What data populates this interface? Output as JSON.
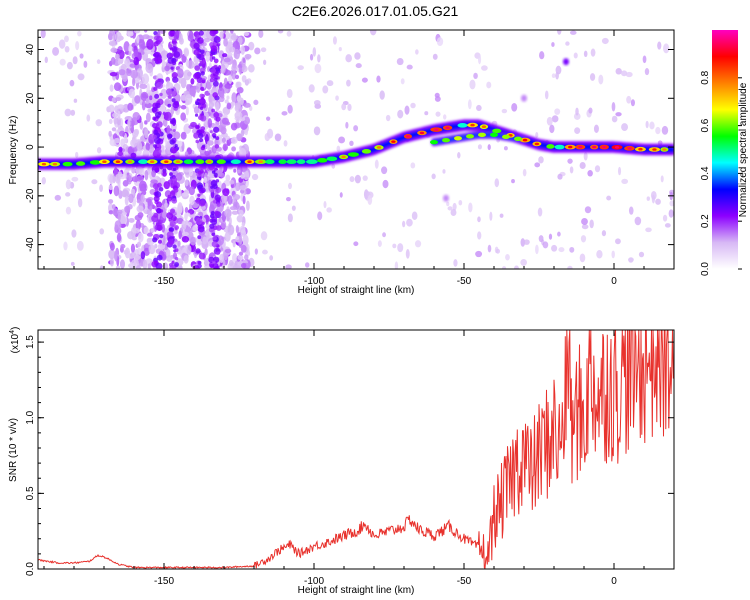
{
  "figure_title": "C2E6.2026.017.01.05.G21",
  "chart_data": [
    {
      "type": "heatmap",
      "xlabel": "Height of straight line (km)",
      "ylabel": "Frequency (Hz)",
      "xlim": [
        -192,
        20
      ],
      "ylim": [
        -50,
        48
      ],
      "x_ticks": [
        -150,
        -100,
        -50,
        0
      ],
      "x_tick_labels": [
        "-150",
        "-100",
        "-50",
        "0"
      ],
      "y_ticks": [
        -40,
        -20,
        0,
        20,
        40
      ],
      "y_tick_labels": [
        "-40",
        "-20",
        "0",
        "20",
        "40"
      ],
      "colorbar": {
        "label": "Normalized spectral amplitude",
        "range": [
          0,
          1
        ],
        "ticks": [
          0,
          0.2,
          0.4,
          0.6,
          0.8
        ],
        "tick_labels": [
          "0.0",
          "0.2",
          "0.4",
          "0.6",
          "0.8"
        ],
        "colors": [
          "#ffffff",
          "#d7b8f5",
          "#8c00ff",
          "#0000ff",
          "#00ffff",
          "#00ff00",
          "#ffff00",
          "#ff8000",
          "#ff0000",
          "#ff00c0"
        ]
      },
      "ridge": {
        "x": [
          -192,
          -180,
          -170,
          -160,
          -150,
          -140,
          -130,
          -120,
          -110,
          -100,
          -90,
          -80,
          -70,
          -60,
          -50,
          -45,
          -40,
          -35,
          -30,
          -25,
          -20,
          -10,
          0,
          10,
          20
        ],
        "y": [
          -7,
          -7,
          -6,
          -6,
          -6,
          -6,
          -6,
          -6,
          -6,
          -6,
          -4,
          -1,
          4,
          7,
          9,
          9,
          7,
          5,
          3,
          1,
          0,
          0,
          0,
          -1,
          -1
        ]
      },
      "secondary_ridge": {
        "x": [
          -60,
          -55,
          -50,
          -45,
          -40,
          -35,
          -30
        ],
        "y": [
          2,
          3,
          4,
          5,
          5,
          4,
          3
        ]
      },
      "scatter_band_x": [
        -168,
        -122
      ],
      "isolated_features": [
        {
          "x": -16,
          "y": 35
        },
        {
          "x": -30,
          "y": 20
        },
        {
          "x": -56,
          "y": -21
        }
      ]
    },
    {
      "type": "line",
      "xlabel": "Height of straight line (km)",
      "ylabel": "SNR (10 * v/v)",
      "y_scale_label": "(x10",
      "y_scale_exponent": "4",
      "xlim": [
        -192,
        20
      ],
      "ylim": [
        0,
        1.58
      ],
      "x_ticks": [
        -150,
        -100,
        -50,
        0
      ],
      "x_tick_labels": [
        "-150",
        "-100",
        "-50",
        "0"
      ],
      "y_ticks": [
        0,
        0.5,
        1.0,
        1.5
      ],
      "y_tick_labels": [
        "0.0",
        "0.5",
        "1.0",
        "1.5"
      ],
      "series": [
        {
          "color": "#e8322d",
          "x": [
            -192,
            -185,
            -180,
            -175,
            -172,
            -170,
            -165,
            -160,
            -150,
            -140,
            -130,
            -120,
            -115,
            -112,
            -108,
            -105,
            -100,
            -95,
            -90,
            -85,
            -83,
            -80,
            -75,
            -70,
            -68,
            -65,
            -60,
            -55,
            -50,
            -45,
            -42,
            -40,
            -38,
            -35,
            -33,
            -30,
            -28,
            -25,
            -22,
            -20,
            -18,
            -16,
            -15,
            -14,
            -12,
            -10,
            -8,
            -5,
            -2,
            0,
            5,
            10,
            15,
            20
          ],
          "y": [
            0.06,
            0.04,
            0.04,
            0.05,
            0.09,
            0.08,
            0.03,
            0.01,
            0.01,
            0.01,
            0.01,
            0.02,
            0.07,
            0.12,
            0.16,
            0.1,
            0.15,
            0.18,
            0.22,
            0.26,
            0.3,
            0.22,
            0.25,
            0.28,
            0.33,
            0.26,
            0.22,
            0.28,
            0.2,
            0.14,
            0.08,
            0.35,
            0.42,
            0.55,
            0.66,
            0.78,
            0.62,
            0.75,
            0.85,
            0.92,
            0.78,
            1.2,
            1.57,
            0.88,
            1.05,
            0.98,
            1.3,
            1.12,
            1.25,
            1.18,
            1.32,
            1.4,
            1.45,
            1.38
          ]
        }
      ]
    }
  ]
}
